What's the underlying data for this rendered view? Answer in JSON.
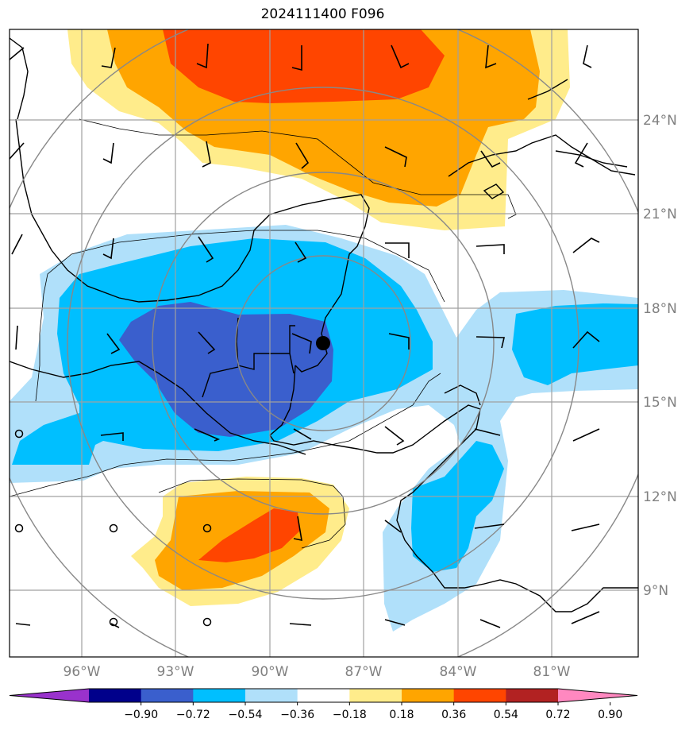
{
  "title": "2024111400 F096",
  "lat_labels": [
    "24°N",
    "21°N",
    "18°N",
    "15°N",
    "12°N",
    "9°N"
  ],
  "lon_labels": [
    "96°W",
    "93°W",
    "90°W",
    "87°W",
    "84°W",
    "81°W"
  ],
  "colorbar": {
    "ticks": [
      "−0.90",
      "−0.72",
      "−0.54",
      "−0.36",
      "−0.18",
      "0.18",
      "0.36",
      "0.54",
      "0.72",
      "0.90"
    ],
    "colors": [
      "#9932cc",
      "#00008b",
      "#3a5fcd",
      "#00bfff",
      "#b0e0fa",
      "#ffffff",
      "#ffec8b",
      "#ffa500",
      "#ff4500",
      "#b22222",
      "#ff88c0"
    ]
  },
  "marker": "storm-center"
}
